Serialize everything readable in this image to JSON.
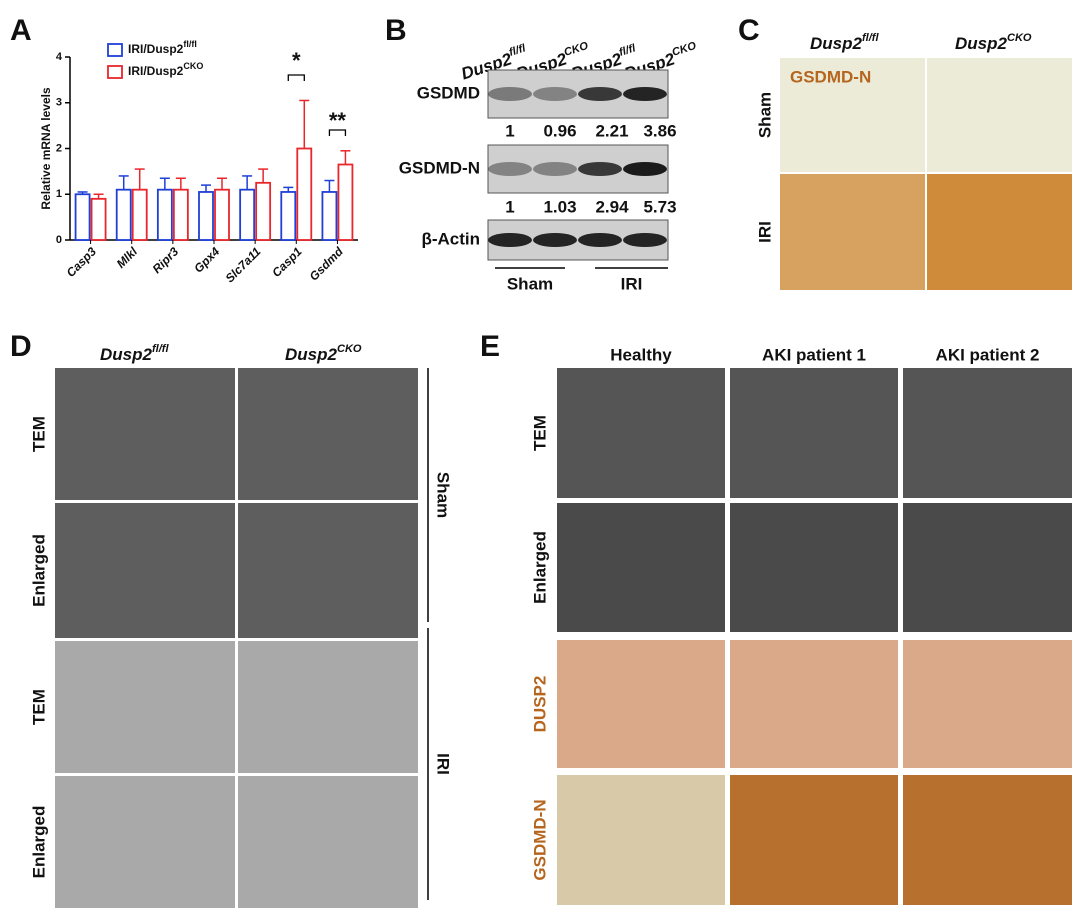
{
  "panel_letters": [
    "A",
    "B",
    "C",
    "D",
    "E"
  ],
  "chart_data": {
    "type": "bar",
    "ylabel": "Relative mRNA levels",
    "categories": [
      "Casp3",
      "Mlkl",
      "Ripr3",
      "Gpx4",
      "Slc7a11",
      "Casp1",
      "Gsdmd"
    ],
    "series": [
      {
        "name": "IRI/Dusp2",
        "name_sup": "fl/fl",
        "color": "#1f3fd6",
        "values": [
          1.0,
          1.1,
          1.1,
          1.05,
          1.1,
          1.05,
          1.05
        ],
        "errors": [
          0.05,
          0.3,
          0.25,
          0.15,
          0.3,
          0.1,
          0.25
        ]
      },
      {
        "name": "IRI/Dusp2",
        "name_sup": "CKO",
        "color": "#e8262b",
        "values": [
          0.9,
          1.1,
          1.1,
          1.1,
          1.25,
          2.0,
          1.65
        ],
        "errors": [
          0.1,
          0.45,
          0.25,
          0.25,
          0.3,
          1.05,
          0.3
        ]
      }
    ],
    "ylim": [
      0,
      4
    ],
    "yticks": [
      0,
      1,
      2,
      3,
      4
    ],
    "annotations": [
      "*",
      "**"
    ]
  },
  "blot": {
    "genotypes": [
      {
        "base": "Dusp2",
        "sup": "fl/fl"
      },
      {
        "base": "Dusp2",
        "sup": "CKO"
      },
      {
        "base": "Dusp2",
        "sup": "fl/fl"
      },
      {
        "base": "Dusp2",
        "sup": "CKO"
      }
    ],
    "rows": [
      "GSDMD",
      "GSDMD-N",
      "β-Actin"
    ],
    "quant": [
      [
        "1",
        "0.96",
        "2.21",
        "3.86"
      ],
      [
        "1",
        "1.03",
        "2.94",
        "5.73"
      ]
    ],
    "groups": [
      "Sham",
      "IRI"
    ]
  },
  "ihc": {
    "genotypes": [
      {
        "base": "Dusp2",
        "sup": "fl/fl"
      },
      {
        "base": "Dusp2",
        "sup": "CKO"
      }
    ],
    "stain": "GSDMD-N",
    "rows": [
      "Sham",
      "IRI"
    ]
  },
  "tem": {
    "genotypes": [
      {
        "base": "Dusp2",
        "sup": "fl/fl"
      },
      {
        "base": "Dusp2",
        "sup": "CKO"
      }
    ],
    "rows": [
      "TEM",
      "Enlarged",
      "TEM",
      "Enlarged"
    ],
    "groups": [
      "Sham",
      "IRI"
    ]
  },
  "human": {
    "columns": [
      "Healthy",
      "AKI patient 1",
      "AKI patient 2"
    ],
    "rows": [
      "TEM",
      "Enlarged",
      "DUSP2",
      "GSDMD-N"
    ]
  }
}
